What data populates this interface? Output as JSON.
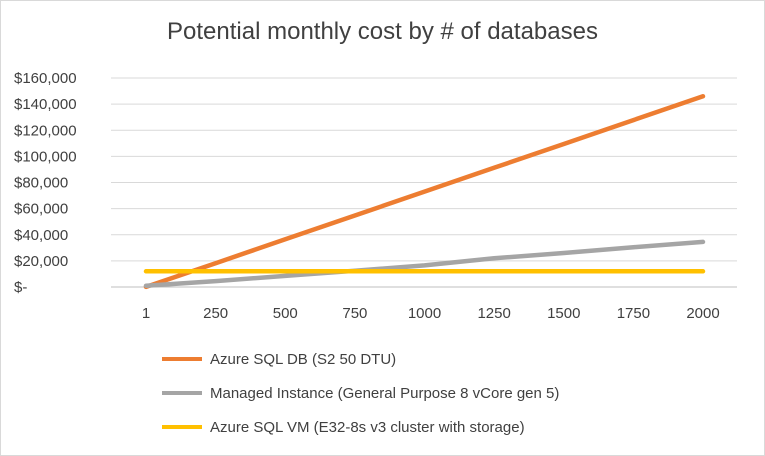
{
  "chart_data": {
    "type": "line",
    "title": "Potential monthly cost by # of databases",
    "xlabel": "",
    "ylabel": "",
    "categories": [
      "1",
      "250",
      "500",
      "750",
      "1000",
      "1250",
      "1500",
      "1750",
      "2000"
    ],
    "y_tick_labels": [
      "$160,000",
      "$140,000",
      "$120,000",
      "$100,000",
      "$80,000",
      "$60,000",
      "$40,000",
      "$20,000",
      "$-"
    ],
    "ylim": [
      0,
      160000
    ],
    "grid": true,
    "legend_position": "bottom",
    "series": [
      {
        "name": "Azure SQL DB (S2 50 DTU)",
        "color": "#ed7d31",
        "values": [
          73,
          18250,
          36500,
          54750,
          73000,
          91250,
          109500,
          127750,
          146000
        ]
      },
      {
        "name": "Managed Instance (General Purpose 8 vCore gen 5)",
        "color": "#a5a5a5",
        "values": [
          1000,
          4500,
          8500,
          12500,
          16500,
          22000,
          26000,
          30500,
          34500
        ]
      },
      {
        "name": "Azure SQL VM (E32-8s v3 cluster with storage)",
        "color": "#ffc000",
        "values": [
          12000,
          12000,
          12000,
          12000,
          12000,
          12000,
          12000,
          12000,
          12000
        ]
      }
    ]
  }
}
